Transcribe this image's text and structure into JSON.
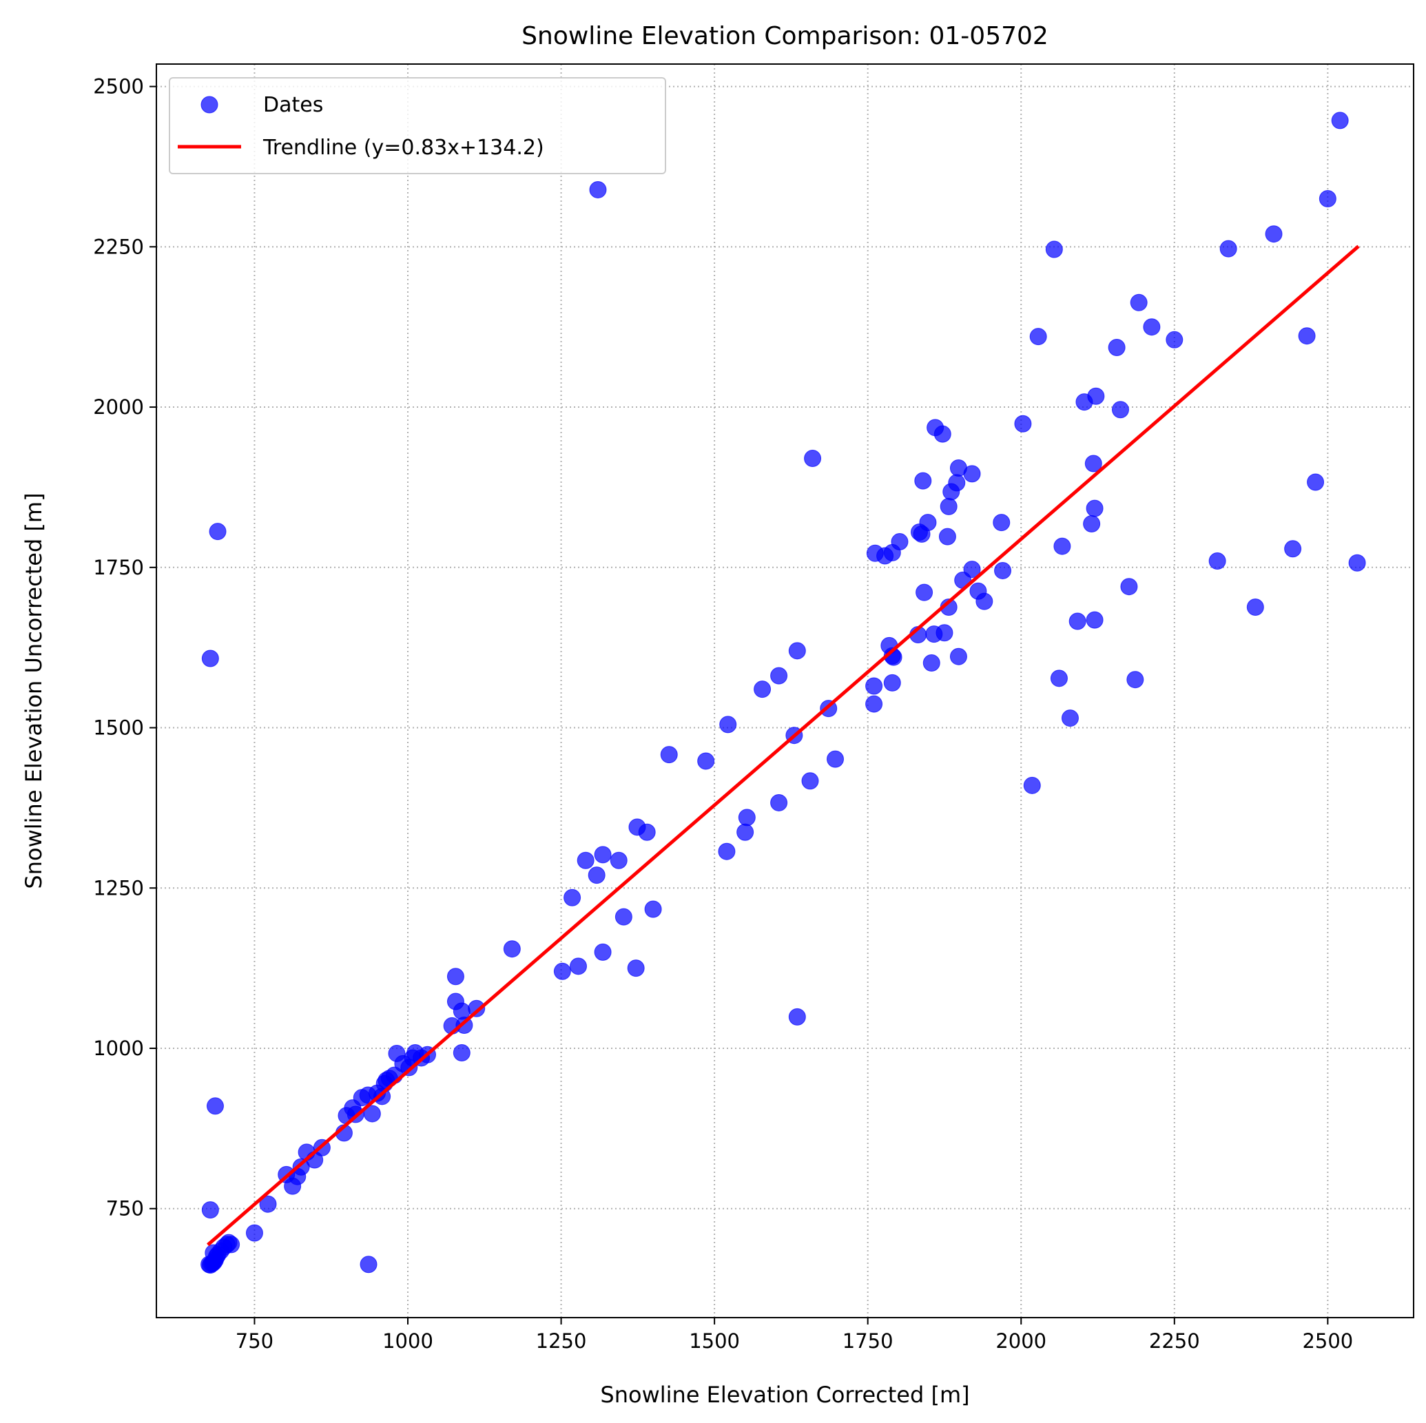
{
  "chart_data": {
    "type": "scatter",
    "title": "Snowline Elevation Comparison: 01-05702",
    "xlabel": "Snowline Elevation Corrected [m]",
    "ylabel": "Snowline Elevation Uncorrected [m]",
    "xlim": [
      590,
      2640
    ],
    "ylim": [
      580,
      2535
    ],
    "xticks": [
      750,
      1000,
      1250,
      1500,
      1750,
      2000,
      2250,
      2500
    ],
    "yticks": [
      750,
      1000,
      1250,
      1500,
      1750,
      2000,
      2250,
      2500
    ],
    "grid": true,
    "legend_position": "top-left",
    "colors": {
      "points": "#0000ff",
      "trendline": "#ff0000"
    },
    "series": [
      {
        "name": "Dates",
        "kind": "scatter",
        "points": [
          [
            676,
            663
          ],
          [
            678,
            662
          ],
          [
            680,
            664
          ],
          [
            682,
            665
          ],
          [
            684,
            667
          ],
          [
            686,
            670
          ],
          [
            688,
            675
          ],
          [
            683,
            681
          ],
          [
            690,
            678
          ],
          [
            695,
            684
          ],
          [
            700,
            690
          ],
          [
            705,
            694
          ],
          [
            708,
            697
          ],
          [
            712,
            694
          ],
          [
            678,
            748
          ],
          [
            686,
            910
          ],
          [
            678,
            1608
          ],
          [
            690,
            1806
          ],
          [
            750,
            712
          ],
          [
            772,
            757
          ],
          [
            936,
            663
          ],
          [
            802,
            803
          ],
          [
            812,
            785
          ],
          [
            820,
            800
          ],
          [
            826,
            815
          ],
          [
            835,
            838
          ],
          [
            848,
            826
          ],
          [
            860,
            845
          ],
          [
            896,
            868
          ],
          [
            900,
            895
          ],
          [
            910,
            907
          ],
          [
            915,
            897
          ],
          [
            925,
            923
          ],
          [
            935,
            927
          ],
          [
            942,
            898
          ],
          [
            950,
            930
          ],
          [
            958,
            925
          ],
          [
            962,
            945
          ],
          [
            965,
            950
          ],
          [
            970,
            953
          ],
          [
            978,
            958
          ],
          [
            982,
            992
          ],
          [
            992,
            976
          ],
          [
            1002,
            970
          ],
          [
            1008,
            985
          ],
          [
            1012,
            993
          ],
          [
            1022,
            985
          ],
          [
            1032,
            990
          ],
          [
            1072,
            1035
          ],
          [
            1078,
            1112
          ],
          [
            1078,
            1073
          ],
          [
            1088,
            1058
          ],
          [
            1088,
            993
          ],
          [
            1092,
            1036
          ],
          [
            1112,
            1062
          ],
          [
            1170,
            1155
          ],
          [
            1252,
            1120
          ],
          [
            1268,
            1235
          ],
          [
            1278,
            1128
          ],
          [
            1290,
            1293
          ],
          [
            1308,
            1270
          ],
          [
            1310,
            2339
          ],
          [
            1318,
            1302
          ],
          [
            1318,
            1150
          ],
          [
            1344,
            1293
          ],
          [
            1352,
            1205
          ],
          [
            1372,
            1125
          ],
          [
            1374,
            1345
          ],
          [
            1390,
            1337
          ],
          [
            1400,
            1217
          ],
          [
            1426,
            1458
          ],
          [
            1486,
            1448
          ],
          [
            1520,
            1307
          ],
          [
            1522,
            1505
          ],
          [
            1550,
            1337
          ],
          [
            1553,
            1360
          ],
          [
            1578,
            1560
          ],
          [
            1605,
            1383
          ],
          [
            1605,
            1581
          ],
          [
            1630,
            1488
          ],
          [
            1635,
            1620
          ],
          [
            1635,
            1049
          ],
          [
            1656,
            1417
          ],
          [
            1660,
            1920
          ],
          [
            1686,
            1530
          ],
          [
            1697,
            1451
          ],
          [
            1760,
            1565
          ],
          [
            1760,
            1537
          ],
          [
            1762,
            1772
          ],
          [
            1778,
            1768
          ],
          [
            1785,
            1628
          ],
          [
            1790,
            1773
          ],
          [
            1790,
            1570
          ],
          [
            1790,
            1612
          ],
          [
            1792,
            1610
          ],
          [
            1802,
            1790
          ],
          [
            1832,
            1645
          ],
          [
            1834,
            1805
          ],
          [
            1838,
            1802
          ],
          [
            1840,
            1885
          ],
          [
            1842,
            1711
          ],
          [
            1848,
            1820
          ],
          [
            1854,
            1601
          ],
          [
            1858,
            1646
          ],
          [
            1860,
            1968
          ],
          [
            1872,
            1958
          ],
          [
            1875,
            1648
          ],
          [
            1880,
            1798
          ],
          [
            1882,
            1845
          ],
          [
            1882,
            1688
          ],
          [
            1886,
            1868
          ],
          [
            1895,
            1882
          ],
          [
            1898,
            1611
          ],
          [
            1898,
            1905
          ],
          [
            1905,
            1730
          ],
          [
            1920,
            1896
          ],
          [
            1920,
            1747
          ],
          [
            1930,
            1713
          ],
          [
            1940,
            1697
          ],
          [
            1968,
            1820
          ],
          [
            1970,
            1745
          ],
          [
            2003,
            1974
          ],
          [
            2018,
            1410
          ],
          [
            2028,
            2110
          ],
          [
            2054,
            2246
          ],
          [
            2062,
            1577
          ],
          [
            2067,
            1783
          ],
          [
            2080,
            1515
          ],
          [
            2092,
            1666
          ],
          [
            2103,
            2008
          ],
          [
            2115,
            1818
          ],
          [
            2118,
            1912
          ],
          [
            2120,
            1842
          ],
          [
            2120,
            1668
          ],
          [
            2122,
            2017
          ],
          [
            2156,
            2093
          ],
          [
            2162,
            1996
          ],
          [
            2176,
            1720
          ],
          [
            2186,
            1575
          ],
          [
            2192,
            2163
          ],
          [
            2213,
            2125
          ],
          [
            2250,
            2105
          ],
          [
            2320,
            1760
          ],
          [
            2338,
            2247
          ],
          [
            2382,
            1688
          ],
          [
            2412,
            2270
          ],
          [
            2443,
            1779
          ],
          [
            2466,
            2111
          ],
          [
            2480,
            1883
          ],
          [
            2500,
            2325
          ],
          [
            2520,
            2447
          ],
          [
            2548,
            1757
          ]
        ]
      },
      {
        "name": "Trendline (y=0.83x+134.2)",
        "kind": "line",
        "slope": 0.83,
        "intercept": 134.2,
        "x_range": [
          676,
          2548
        ]
      }
    ]
  }
}
